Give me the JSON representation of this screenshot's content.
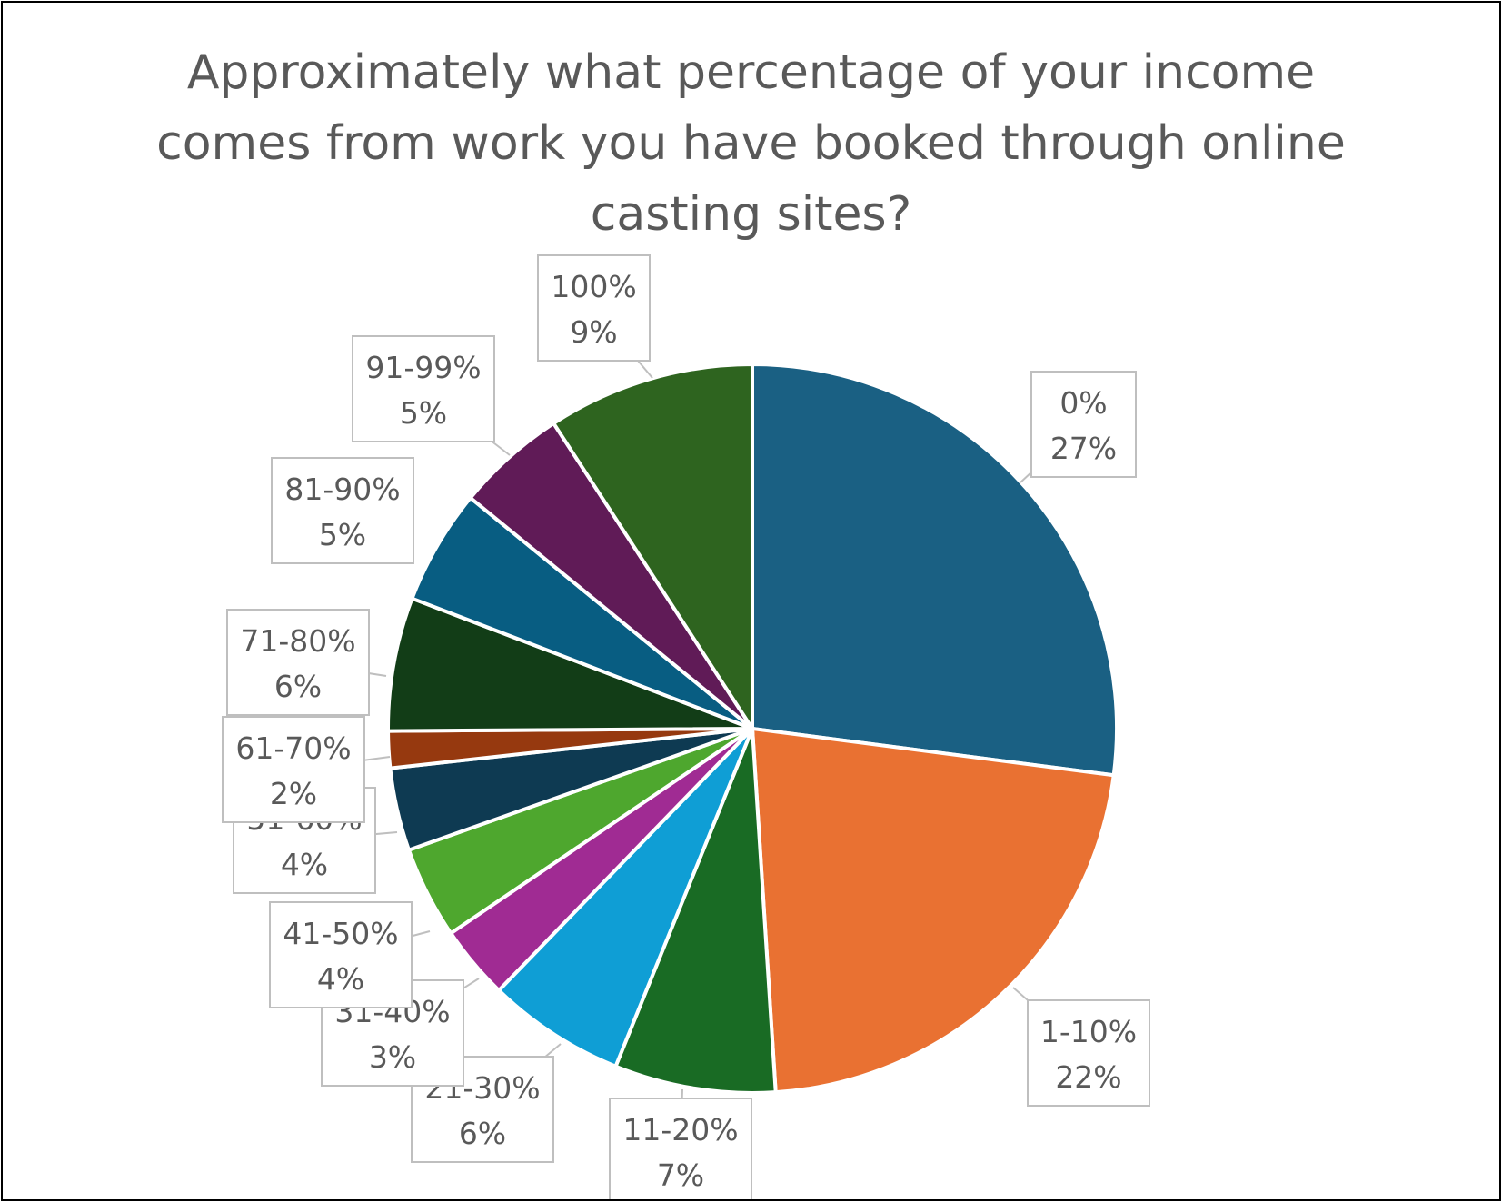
{
  "chart_data": {
    "type": "pie",
    "title_lines": [
      "Approximately what percentage of your income",
      "comes from work you have booked through online",
      "casting sites?"
    ],
    "start_angle_deg": 0,
    "direction": "clockwise",
    "slices": [
      {
        "label": "0%",
        "value": 26.5,
        "display": "27%",
        "color": "#1a6083"
      },
      {
        "label": "1-10%",
        "value": 21.5,
        "display": "22%",
        "color": "#e97132"
      },
      {
        "label": "11-20%",
        "value": 7.0,
        "display": "7%",
        "color": "#196b24"
      },
      {
        "label": "21-30%",
        "value": 6.0,
        "display": "6%",
        "color": "#0f9ed5"
      },
      {
        "label": "31-40%",
        "value": 3.2,
        "display": "3%",
        "color": "#a02b93"
      },
      {
        "label": "41-50%",
        "value": 4.0,
        "display": "4%",
        "color": "#4ea72e"
      },
      {
        "label": "51-60%",
        "value": 3.6,
        "display": "4%",
        "color": "#0e3a52"
      },
      {
        "label": "61-70%",
        "value": 1.6,
        "display": "2%",
        "color": "#96390f"
      },
      {
        "label": "71-80%",
        "value": 5.8,
        "display": "6%",
        "color": "#123d17"
      },
      {
        "label": "81-90%",
        "value": 5.0,
        "display": "5%",
        "color": "#085d82"
      },
      {
        "label": "91-99%",
        "value": 4.8,
        "display": "5%",
        "color": "#601b57"
      },
      {
        "label": "100%",
        "value": 9.0,
        "display": "9%",
        "color": "#2e641f"
      }
    ]
  }
}
